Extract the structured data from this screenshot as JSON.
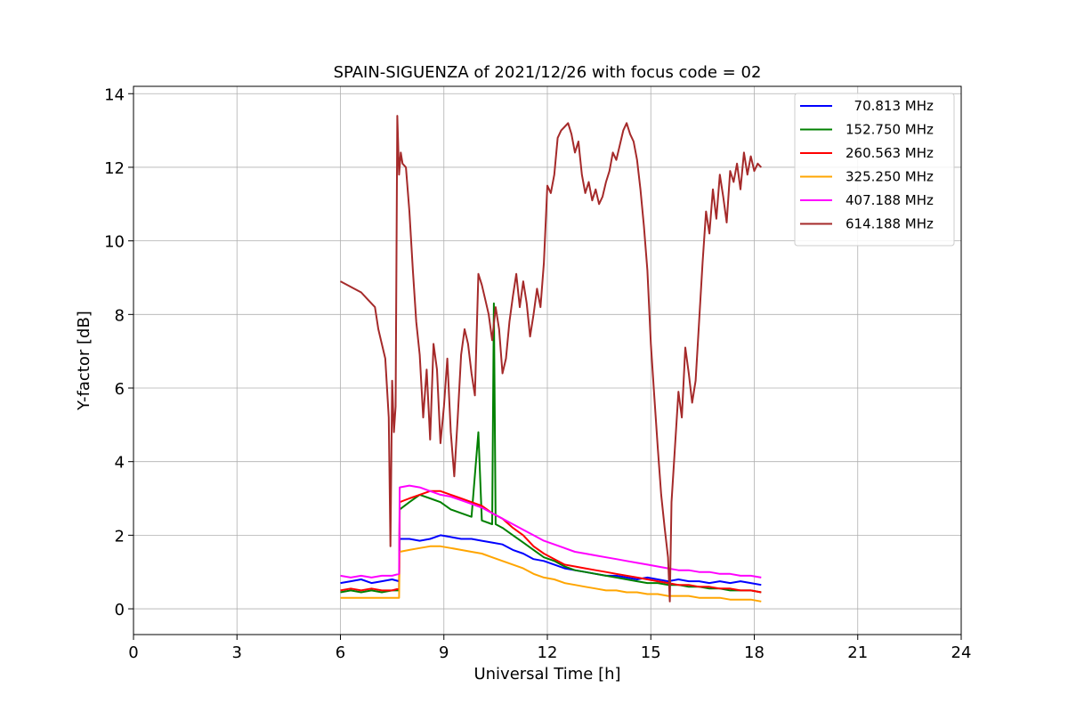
{
  "chart_data": {
    "type": "line",
    "title": "SPAIN-SIGUENZA of 2021/12/26 with focus code = 02",
    "xlabel": "Universal Time [h]",
    "ylabel": "Y-factor [dB]",
    "xlim": [
      0,
      24
    ],
    "ylim": [
      -0.7,
      14.2
    ],
    "xticks": [
      0,
      3,
      6,
      9,
      12,
      15,
      18,
      21,
      24
    ],
    "yticks": [
      0,
      2,
      4,
      6,
      8,
      10,
      12,
      14
    ],
    "grid": true,
    "legend_position": "top-right",
    "series": [
      {
        "name": "  70.813 MHz",
        "color": "#0000ff",
        "x": [
          6.0,
          6.3,
          6.6,
          6.9,
          7.2,
          7.5,
          7.7,
          7.72,
          8.0,
          8.3,
          8.6,
          8.9,
          9.2,
          9.5,
          9.8,
          10.1,
          10.4,
          10.7,
          11.0,
          11.3,
          11.6,
          11.9,
          12.2,
          12.5,
          12.8,
          13.1,
          13.4,
          13.7,
          14.0,
          14.3,
          14.6,
          14.9,
          15.2,
          15.5,
          15.8,
          16.1,
          16.4,
          16.7,
          17.0,
          17.3,
          17.6,
          17.9,
          18.2
        ],
        "y": [
          0.7,
          0.75,
          0.8,
          0.7,
          0.75,
          0.8,
          0.75,
          1.9,
          1.9,
          1.85,
          1.9,
          2.0,
          1.95,
          1.9,
          1.9,
          1.85,
          1.8,
          1.75,
          1.6,
          1.5,
          1.35,
          1.3,
          1.2,
          1.1,
          1.05,
          1.0,
          0.95,
          0.9,
          0.9,
          0.85,
          0.8,
          0.85,
          0.8,
          0.75,
          0.8,
          0.75,
          0.75,
          0.7,
          0.75,
          0.7,
          0.75,
          0.7,
          0.65
        ]
      },
      {
        "name": "152.750 MHz",
        "color": "#008000",
        "x": [
          6.0,
          6.3,
          6.6,
          6.9,
          7.2,
          7.5,
          7.7,
          7.72,
          8.0,
          8.3,
          8.6,
          8.9,
          9.2,
          9.5,
          9.8,
          10.0,
          10.1,
          10.4,
          10.45,
          10.5,
          10.7,
          11.0,
          11.3,
          11.6,
          11.9,
          12.2,
          12.5,
          12.8,
          13.1,
          13.4,
          13.7,
          14.0,
          14.3,
          14.6,
          14.9,
          15.2,
          15.5,
          15.8,
          16.1,
          16.4,
          16.7,
          17.0,
          17.3,
          17.6,
          17.9,
          18.2
        ],
        "y": [
          0.45,
          0.5,
          0.45,
          0.5,
          0.45,
          0.5,
          0.5,
          2.7,
          2.9,
          3.1,
          3.0,
          2.9,
          2.7,
          2.6,
          2.5,
          4.8,
          2.4,
          2.3,
          8.3,
          2.3,
          2.2,
          2.0,
          1.8,
          1.6,
          1.4,
          1.3,
          1.15,
          1.05,
          1.0,
          0.95,
          0.9,
          0.85,
          0.8,
          0.75,
          0.7,
          0.7,
          0.65,
          0.65,
          0.6,
          0.6,
          0.55,
          0.55,
          0.5,
          0.5,
          0.5,
          0.45
        ]
      },
      {
        "name": "260.563 MHz",
        "color": "#ff0000",
        "x": [
          6.0,
          6.3,
          6.6,
          6.9,
          7.2,
          7.5,
          7.7,
          7.72,
          8.0,
          8.3,
          8.6,
          8.9,
          9.2,
          9.5,
          9.8,
          10.1,
          10.4,
          10.7,
          11.0,
          11.3,
          11.6,
          11.9,
          12.2,
          12.5,
          12.8,
          13.1,
          13.4,
          13.7,
          14.0,
          14.3,
          14.6,
          14.9,
          15.2,
          15.5,
          15.8,
          16.1,
          16.4,
          16.7,
          17.0,
          17.3,
          17.6,
          17.9,
          18.2
        ],
        "y": [
          0.5,
          0.55,
          0.5,
          0.55,
          0.5,
          0.5,
          0.55,
          2.9,
          3.0,
          3.1,
          3.2,
          3.2,
          3.1,
          3.0,
          2.9,
          2.8,
          2.6,
          2.45,
          2.2,
          2.0,
          1.7,
          1.5,
          1.35,
          1.2,
          1.15,
          1.1,
          1.05,
          1.0,
          0.95,
          0.9,
          0.85,
          0.8,
          0.75,
          0.7,
          0.65,
          0.65,
          0.6,
          0.6,
          0.55,
          0.55,
          0.5,
          0.5,
          0.45
        ]
      },
      {
        "name": "325.250 MHz",
        "color": "#ffa500",
        "x": [
          6.0,
          6.3,
          6.6,
          6.9,
          7.2,
          7.5,
          7.7,
          7.72,
          8.0,
          8.3,
          8.6,
          8.9,
          9.2,
          9.5,
          9.8,
          10.1,
          10.4,
          10.7,
          11.0,
          11.3,
          11.6,
          11.9,
          12.2,
          12.5,
          12.8,
          13.1,
          13.4,
          13.7,
          14.0,
          14.3,
          14.6,
          14.9,
          15.2,
          15.5,
          15.8,
          16.1,
          16.4,
          16.7,
          17.0,
          17.3,
          17.6,
          17.9,
          18.2
        ],
        "y": [
          0.3,
          0.3,
          0.3,
          0.3,
          0.3,
          0.3,
          0.3,
          1.55,
          1.6,
          1.65,
          1.7,
          1.7,
          1.65,
          1.6,
          1.55,
          1.5,
          1.4,
          1.3,
          1.2,
          1.1,
          0.95,
          0.85,
          0.8,
          0.7,
          0.65,
          0.6,
          0.55,
          0.5,
          0.5,
          0.45,
          0.45,
          0.4,
          0.4,
          0.35,
          0.35,
          0.35,
          0.3,
          0.3,
          0.3,
          0.25,
          0.25,
          0.25,
          0.2
        ]
      },
      {
        "name": "407.188 MHz",
        "color": "#ff00ff",
        "x": [
          6.0,
          6.3,
          6.6,
          6.9,
          7.2,
          7.5,
          7.7,
          7.72,
          8.0,
          8.3,
          8.6,
          8.9,
          9.2,
          9.5,
          9.8,
          10.1,
          10.4,
          10.7,
          11.0,
          11.3,
          11.6,
          11.9,
          12.2,
          12.5,
          12.8,
          13.1,
          13.4,
          13.7,
          14.0,
          14.3,
          14.6,
          14.9,
          15.2,
          15.5,
          15.8,
          16.1,
          16.4,
          16.7,
          17.0,
          17.3,
          17.6,
          17.9,
          18.2
        ],
        "y": [
          0.9,
          0.85,
          0.9,
          0.85,
          0.9,
          0.9,
          0.95,
          3.3,
          3.35,
          3.3,
          3.2,
          3.1,
          3.05,
          2.95,
          2.85,
          2.75,
          2.6,
          2.45,
          2.3,
          2.15,
          2.0,
          1.85,
          1.75,
          1.65,
          1.55,
          1.5,
          1.45,
          1.4,
          1.35,
          1.3,
          1.25,
          1.2,
          1.15,
          1.1,
          1.05,
          1.05,
          1.0,
          1.0,
          0.95,
          0.95,
          0.9,
          0.9,
          0.85
        ]
      },
      {
        "name": "614.188 MHz",
        "color": "#a52a2a",
        "x": [
          6.0,
          6.2,
          6.4,
          6.6,
          6.8,
          7.0,
          7.1,
          7.2,
          7.3,
          7.4,
          7.45,
          7.5,
          7.55,
          7.6,
          7.65,
          7.7,
          7.75,
          7.8,
          7.9,
          8.0,
          8.1,
          8.2,
          8.3,
          8.4,
          8.5,
          8.6,
          8.7,
          8.8,
          8.9,
          9.0,
          9.1,
          9.2,
          9.3,
          9.4,
          9.5,
          9.6,
          9.7,
          9.8,
          9.9,
          10.0,
          10.1,
          10.2,
          10.3,
          10.4,
          10.5,
          10.6,
          10.7,
          10.8,
          10.9,
          11.0,
          11.1,
          11.2,
          11.3,
          11.4,
          11.5,
          11.6,
          11.7,
          11.8,
          11.9,
          12.0,
          12.1,
          12.2,
          12.3,
          12.4,
          12.5,
          12.6,
          12.7,
          12.8,
          12.9,
          13.0,
          13.1,
          13.2,
          13.3,
          13.4,
          13.5,
          13.6,
          13.7,
          13.8,
          13.9,
          14.0,
          14.1,
          14.2,
          14.3,
          14.4,
          14.5,
          14.6,
          14.7,
          14.8,
          14.9,
          15.0,
          15.1,
          15.2,
          15.3,
          15.4,
          15.5,
          15.55,
          15.6,
          15.7,
          15.8,
          15.9,
          16.0,
          16.1,
          16.2,
          16.3,
          16.4,
          16.5,
          16.6,
          16.7,
          16.8,
          16.9,
          17.0,
          17.1,
          17.2,
          17.3,
          17.4,
          17.5,
          17.6,
          17.7,
          17.8,
          17.9,
          18.0,
          18.1,
          18.2
        ],
        "y": [
          8.9,
          8.8,
          8.7,
          8.6,
          8.4,
          8.2,
          7.6,
          7.2,
          6.8,
          5.2,
          1.7,
          6.2,
          4.8,
          5.5,
          13.4,
          11.8,
          12.4,
          12.1,
          12.0,
          10.8,
          9.2,
          7.8,
          6.9,
          5.2,
          6.5,
          4.6,
          7.2,
          6.5,
          4.5,
          5.5,
          6.8,
          4.8,
          3.6,
          5.2,
          6.9,
          7.6,
          7.2,
          6.4,
          5.8,
          9.1,
          8.8,
          8.4,
          8.0,
          7.3,
          8.2,
          7.6,
          6.4,
          6.8,
          7.8,
          8.5,
          9.1,
          8.2,
          8.9,
          8.3,
          7.4,
          8.0,
          8.7,
          8.2,
          9.4,
          11.5,
          11.3,
          11.8,
          12.8,
          13.0,
          13.1,
          13.2,
          12.9,
          12.4,
          12.7,
          11.8,
          11.3,
          11.6,
          11.1,
          11.4,
          11.0,
          11.2,
          11.6,
          11.9,
          12.4,
          12.2,
          12.6,
          13.0,
          13.2,
          12.9,
          12.7,
          12.2,
          11.4,
          10.4,
          9.2,
          7.2,
          5.8,
          4.4,
          3.1,
          2.2,
          1.4,
          0.2,
          2.9,
          4.4,
          5.9,
          5.2,
          7.1,
          6.4,
          5.6,
          6.2,
          7.8,
          9.4,
          10.8,
          10.2,
          11.4,
          10.6,
          11.8,
          11.2,
          10.5,
          11.9,
          11.6,
          12.1,
          11.4,
          12.4,
          11.8,
          12.3,
          11.9,
          12.1,
          12.0
        ]
      }
    ]
  }
}
